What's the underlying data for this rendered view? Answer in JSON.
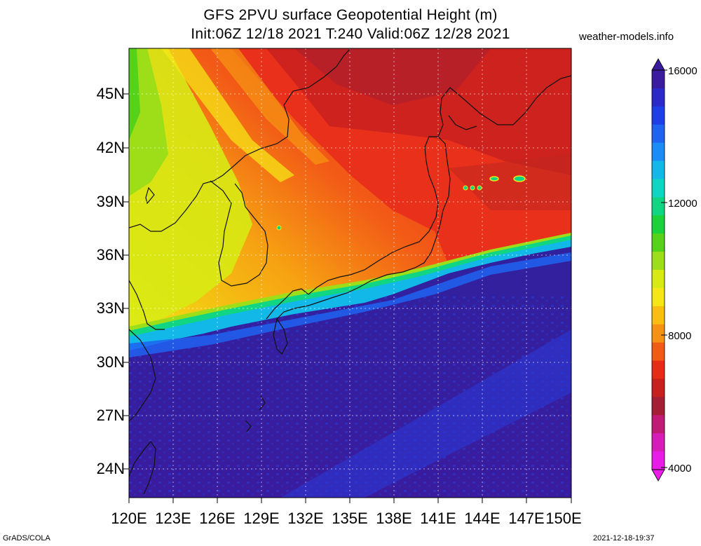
{
  "title": {
    "line1": "GFS 2PVU surface Geopotential Height (m)",
    "line2": "Init:06Z 12/18 2021 T:240 Valid:06Z 12/28 2021"
  },
  "source_label": "weather-models.info",
  "footer": {
    "credit": "GrADS/COLA",
    "timestamp": "2021-12-18-19:37"
  },
  "map": {
    "lat_labels": [
      "45N",
      "42N",
      "39N",
      "36N",
      "33N",
      "30N",
      "27N",
      "24N"
    ],
    "lon_labels": [
      "120E",
      "123E",
      "126E",
      "129E",
      "132E",
      "135E",
      "138E",
      "141E",
      "144E",
      "147E",
      "150E"
    ],
    "region": "East Asia / Japan"
  },
  "colorbar": {
    "labels": [
      "16000",
      "12000",
      "8000",
      "4000"
    ],
    "colors": [
      "#3a1c9e",
      "#2b29c8",
      "#1e3fe6",
      "#1f63f0",
      "#1b8bf5",
      "#12b8e8",
      "#0fd6c2",
      "#10d684",
      "#1ad23c",
      "#56d21a",
      "#9ede18",
      "#d8ea14",
      "#f5e615",
      "#f8be12",
      "#f69212",
      "#f25b16",
      "#e62c16",
      "#c8201e",
      "#a41e34",
      "#c21b76",
      "#d81cb8",
      "#e81ce6"
    ]
  }
}
